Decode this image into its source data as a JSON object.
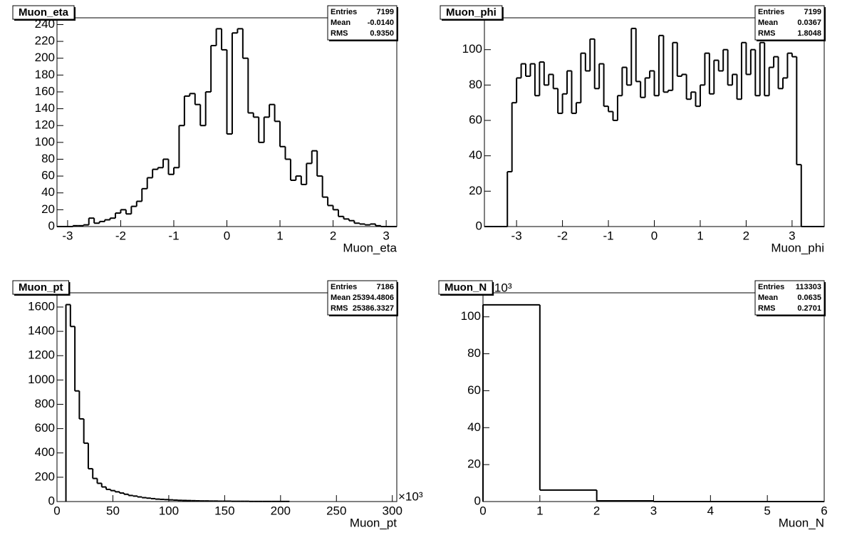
{
  "chart_data": [
    {
      "type": "histogram",
      "title": "Muon_eta",
      "x_label": "Muon_eta",
      "stats": {
        "labels": [
          "Entries",
          "Mean",
          "RMS"
        ],
        "values": [
          "7199",
          "-0.0140",
          "0.9350"
        ]
      },
      "bins": [
        -3.2,
        -3.1,
        -3,
        -2.9,
        -2.8,
        -2.7,
        -2.6,
        -2.5,
        -2.4,
        -2.3,
        -2.2,
        -2.1,
        -2,
        -1.9,
        -1.8,
        -1.7,
        -1.6,
        -1.5,
        -1.4,
        -1.3,
        -1.2,
        -1.1,
        -1,
        -0.9,
        -0.8,
        -0.7,
        -0.6,
        -0.5,
        -0.4,
        -0.3,
        -0.2,
        -0.1,
        0,
        0.1,
        0.2,
        0.3,
        0.4,
        0.5,
        0.6,
        0.7,
        0.8,
        0.9,
        1,
        1.1,
        1.2,
        1.3,
        1.4,
        1.5,
        1.6,
        1.7,
        1.8,
        1.9,
        2,
        2.1,
        2.2,
        2.3,
        2.4,
        2.5,
        2.6,
        2.7,
        2.8,
        2.9,
        3,
        3.1,
        3.2
      ],
      "values": [
        0,
        0,
        0,
        1,
        1,
        2,
        10,
        4,
        6,
        8,
        10,
        16,
        20,
        15,
        24,
        30,
        45,
        58,
        68,
        70,
        80,
        62,
        70,
        120,
        155,
        158,
        145,
        120,
        160,
        215,
        235,
        210,
        110,
        230,
        235,
        200,
        135,
        130,
        100,
        130,
        145,
        125,
        95,
        80,
        55,
        60,
        50,
        75,
        90,
        60,
        35,
        25,
        20,
        12,
        9,
        7,
        4,
        3,
        2,
        3,
        1,
        0,
        0,
        0
      ],
      "color": "#000000",
      "xlim": [
        -3.2,
        3.2
      ],
      "xticks": [
        -3,
        -2,
        -1,
        0,
        1,
        2,
        3
      ],
      "ylim": [
        0,
        248
      ],
      "yticks": [
        0,
        20,
        40,
        60,
        80,
        100,
        120,
        140,
        160,
        180,
        200,
        220,
        240
      ]
    },
    {
      "type": "histogram",
      "title": "Muon_phi",
      "x_label": "Muon_phi",
      "stats": {
        "labels": [
          "Entries",
          "Mean",
          "RMS"
        ],
        "values": [
          "7199",
          "0.0367",
          "1.8048"
        ]
      },
      "bins": [
        -3.7,
        -3.6,
        -3.5,
        -3.4,
        -3.3,
        -3.2,
        -3.1,
        -3,
        -2.9,
        -2.8,
        -2.7,
        -2.6,
        -2.5,
        -2.4,
        -2.3,
        -2.2,
        -2.1,
        -2,
        -1.9,
        -1.8,
        -1.7,
        -1.6,
        -1.5,
        -1.4,
        -1.3,
        -1.2,
        -1.1,
        -1,
        -0.9,
        -0.8,
        -0.7,
        -0.6,
        -0.5,
        -0.4,
        -0.3,
        -0.2,
        -0.1,
        0,
        0.1,
        0.2,
        0.3,
        0.4,
        0.5,
        0.6,
        0.7,
        0.8,
        0.9,
        1,
        1.1,
        1.2,
        1.3,
        1.4,
        1.5,
        1.6,
        1.7,
        1.8,
        1.9,
        2,
        2.1,
        2.2,
        2.3,
        2.4,
        2.5,
        2.6,
        2.7,
        2.8,
        2.9,
        3,
        3.1,
        3.2,
        3.3,
        3.4,
        3.5,
        3.6,
        3.7
      ],
      "values": [
        0,
        0,
        0,
        0,
        0,
        31,
        70,
        84,
        92,
        85,
        92,
        74,
        93,
        80,
        86,
        78,
        64,
        75,
        88,
        64,
        70,
        98,
        88,
        106,
        78,
        92,
        68,
        65,
        60,
        74,
        90,
        80,
        112,
        82,
        73,
        84,
        88,
        74,
        108,
        76,
        77,
        104,
        85,
        86,
        72,
        76,
        68,
        80,
        98,
        75,
        94,
        88,
        100,
        80,
        86,
        72,
        104,
        86,
        100,
        74,
        104,
        74,
        90,
        96,
        78,
        84,
        98,
        96,
        35,
        0,
        0,
        0,
        0,
        0
      ],
      "color": "#000000",
      "xlim": [
        -3.7,
        3.7
      ],
      "xticks": [
        -3,
        -2,
        -1,
        0,
        1,
        2,
        3
      ],
      "ylim": [
        0,
        118
      ],
      "yticks": [
        0,
        20,
        40,
        60,
        80,
        100
      ]
    },
    {
      "type": "histogram",
      "title": "Muon_pt",
      "x_label": "Muon_pt",
      "x_exponent_label": "×10³",
      "stats": {
        "labels": [
          "Entries",
          "Mean",
          "RMS"
        ],
        "values": [
          "7186",
          "25394.4806",
          "25386.3327"
        ]
      },
      "bins": [
        8,
        12,
        16,
        20,
        24,
        28,
        32,
        36,
        40,
        44,
        48,
        52,
        56,
        60,
        64,
        68,
        72,
        76,
        80,
        84,
        88,
        92,
        96,
        100,
        104,
        108,
        112,
        116,
        120,
        124,
        128,
        132,
        136,
        140,
        144,
        148,
        152,
        156,
        160,
        164,
        168,
        172,
        176,
        180,
        184,
        188,
        192,
        196,
        200,
        204,
        208
      ],
      "values": [
        1620,
        1440,
        910,
        680,
        480,
        270,
        190,
        150,
        120,
        100,
        90,
        80,
        70,
        60,
        50,
        45,
        38,
        32,
        28,
        24,
        20,
        18,
        16,
        14,
        12,
        10,
        9,
        8,
        7,
        6,
        5,
        5,
        4,
        4,
        3,
        3,
        3,
        2,
        2,
        2,
        2,
        1,
        1,
        1,
        1,
        1,
        1,
        1,
        1,
        1
      ],
      "color": "#000000",
      "xlim": [
        0,
        304
      ],
      "xticks": [
        0,
        50,
        100,
        150,
        200,
        250,
        300
      ],
      "ylim": [
        0,
        1717
      ],
      "yticks": [
        0,
        200,
        400,
        600,
        800,
        1000,
        1200,
        1400,
        1600
      ]
    },
    {
      "type": "histogram",
      "title": "Muon_N",
      "x_label": "Muon_N",
      "y_exponent_label": "×10³",
      "stats": {
        "labels": [
          "Entries",
          "Mean",
          "RMS"
        ],
        "values": [
          "113303",
          "0.0635",
          "0.2701"
        ]
      },
      "bins": [
        0,
        1,
        2,
        3,
        4,
        5,
        6
      ],
      "values": [
        106.5,
        6.2,
        0.4,
        0,
        0,
        0
      ],
      "color": "#000000",
      "xlim": [
        0,
        6
      ],
      "xticks": [
        0,
        1,
        2,
        3,
        4,
        5,
        6
      ],
      "ylim": [
        0,
        113
      ],
      "yticks": [
        0,
        20,
        40,
        60,
        80,
        100
      ]
    }
  ]
}
